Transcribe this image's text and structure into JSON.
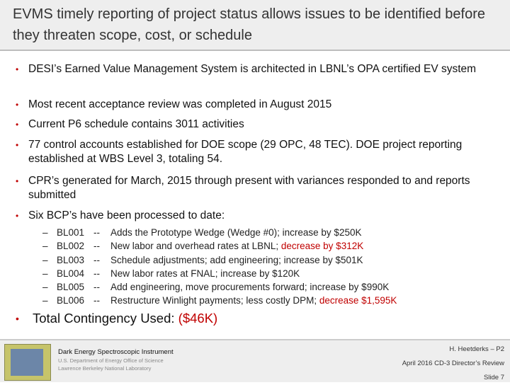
{
  "title": "EVMS timely reporting of project status allows issues to be identified before they threaten scope, cost, or schedule",
  "colors": {
    "accent_red": "#c00000",
    "band_gray": "#eeeeee"
  },
  "bullets": [
    "DESI’s Earned Value Management System is architected in LBNL’s OPA certified EV system",
    "Most recent acceptance review was completed in August 2015",
    "Current P6 schedule contains 3011 activities",
    "77 control accounts established for DOE scope (29 OPC, 48 TEC). DOE project reporting established at WBS Level 3, totaling 54.",
    "CPR’s generated for March, 2015 through present with variances responded to and reports submitted",
    "Six BCP’s have been processed to date:"
  ],
  "bcps": [
    {
      "dash": "–",
      "code": "BL001",
      "sep": "--",
      "desc": "Adds the Prototype Wedge  (Wedge #0); increase by $250K",
      "highlight": ""
    },
    {
      "dash": "–",
      "code": "BL002",
      "sep": "--",
      "desc": "New labor and overhead rates at LBNL; ",
      "highlight": "decrease by $312K"
    },
    {
      "dash": "–",
      "code": "BL003",
      "sep": "--",
      "desc": "Schedule adjustments; add engineering;  increase by $501K",
      "highlight": ""
    },
    {
      "dash": "–",
      "code": "BL004",
      "sep": "--",
      "desc": "New labor rates at FNAL; increase by $120K",
      "highlight": ""
    },
    {
      "dash": "–",
      "code": "BL005",
      "sep": "--",
      "desc": "Add engineering, move procurements forward; increase by $990K",
      "highlight": ""
    },
    {
      "dash": "–",
      "code": "BL006",
      "sep": "--",
      "desc": "Restructure Winlight payments; less costly DPM; ",
      "highlight": "decrease $1,595K"
    }
  ],
  "total": {
    "label": "Total Contingency Used:  ",
    "value": "($46K)"
  },
  "bullet_glyph": "•",
  "footer": {
    "instrument": "Dark Energy Spectroscopic Instrument",
    "doe": "U.S. Department of Energy Office of Science",
    "lab": "Lawrence Berkeley National Laboratory",
    "presenter": "H. Heetderks – P2",
    "review": "April 2016  CD-3 Director’s Review",
    "slide": "Slide 7"
  }
}
